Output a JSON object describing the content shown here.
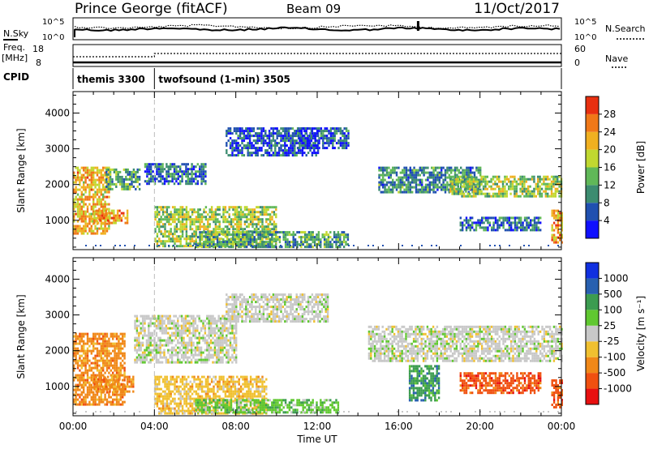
{
  "header": {
    "title": "Prince George (fitACF)",
    "beam": "Beam 09",
    "date": "11/Oct/2017"
  },
  "summary_panel": {
    "nsky_label": "N.Sky",
    "nsearch_label": "N.Search",
    "scale_top": "10^5",
    "scale_bottom": "10^0",
    "freq_label": "Freq.",
    "freq_unit": "[MHz]",
    "freq_ticks": [
      "18",
      "8"
    ],
    "nave_label": "Nave",
    "nave_ticks": [
      "60",
      "0"
    ],
    "cpid_label": "CPID",
    "cpid_segments": [
      {
        "label": "themis 3300",
        "start_hour": 0,
        "end_hour": 4
      },
      {
        "label": "twofsound (1-min) 3505",
        "start_hour": 4,
        "end_hour": 24
      }
    ]
  },
  "chart_data": [
    {
      "type": "heatmap",
      "name": "power",
      "xlabel": "",
      "ylabel": "Slant Range [km]",
      "xlim": [
        0,
        24
      ],
      "ylim": [
        180,
        4600
      ],
      "yticks": [
        1000,
        2000,
        3000,
        4000
      ],
      "colorbar": {
        "label": "Power [dB]",
        "ticks": [
          "4",
          "8",
          "12",
          "16",
          "20",
          "24",
          "28"
        ],
        "levels": [
          0,
          4,
          8,
          12,
          16,
          20,
          24,
          28,
          32
        ],
        "colors": [
          "#1010ff",
          "#2050b0",
          "#3c8c70",
          "#60b858",
          "#c0d830",
          "#f0b020",
          "#f07818",
          "#e83010"
        ]
      },
      "regions": [
        {
          "t0": 0.0,
          "t1": 1.8,
          "r0": 600,
          "r1": 2500,
          "level": 24
        },
        {
          "t0": 1.0,
          "t1": 2.7,
          "r0": 900,
          "r1": 1300,
          "level": 26
        },
        {
          "t0": 1.6,
          "t1": 3.3,
          "r0": 1850,
          "r1": 2450,
          "level": 14
        },
        {
          "t0": 4.0,
          "t1": 10.0,
          "r0": 250,
          "r1": 1400,
          "level": 18
        },
        {
          "t0": 6.0,
          "t1": 13.5,
          "r0": 250,
          "r1": 700,
          "level": 14
        },
        {
          "t0": 3.5,
          "t1": 6.5,
          "r0": 2000,
          "r1": 2600,
          "level": 10
        },
        {
          "t0": 7.5,
          "t1": 12.0,
          "r0": 2800,
          "r1": 3600,
          "level": 8
        },
        {
          "t0": 11.0,
          "t1": 13.5,
          "r0": 3000,
          "r1": 3600,
          "level": 8
        },
        {
          "t0": 15.0,
          "t1": 20.0,
          "r0": 1800,
          "r1": 2500,
          "level": 12
        },
        {
          "t0": 18.5,
          "t1": 24.0,
          "r0": 1700,
          "r1": 2250,
          "level": 18
        },
        {
          "t0": 19.0,
          "t1": 23.0,
          "r0": 750,
          "r1": 1100,
          "level": 10
        },
        {
          "t0": 23.5,
          "t1": 24.0,
          "r0": 400,
          "r1": 1300,
          "level": 26
        }
      ]
    },
    {
      "type": "heatmap",
      "name": "velocity",
      "xlabel": "Time UT",
      "ylabel": "Slant Range [km]",
      "xlim": [
        0,
        24
      ],
      "ylim": [
        180,
        4600
      ],
      "yticks": [
        1000,
        2000,
        3000,
        4000
      ],
      "xticks": [
        "00:00",
        "04:00",
        "08:00",
        "12:00",
        "16:00",
        "20:00",
        "00:00"
      ],
      "colorbar": {
        "label": "Velocity [m s⁻¹]",
        "ticks": [
          "-1000",
          "-500",
          "-100",
          "-25",
          "25",
          "100",
          "500",
          "1000"
        ],
        "colors": [
          "#e81010",
          "#f05010",
          "#f08818",
          "#f0c030",
          "#c8c8c8",
          "#60c830",
          "#3c9c50",
          "#2860b0",
          "#1030e0"
        ]
      },
      "regions": [
        {
          "t0": 0.0,
          "t1": 2.5,
          "r0": 500,
          "r1": 2500,
          "color_index": 2
        },
        {
          "t0": 1.0,
          "t1": 3.0,
          "r0": 850,
          "r1": 1300,
          "color_index": 2
        },
        {
          "t0": 4.0,
          "t1": 9.5,
          "r0": 250,
          "r1": 1300,
          "color_index": 3
        },
        {
          "t0": 6.0,
          "t1": 13.0,
          "r0": 250,
          "r1": 650,
          "color_index": 5
        },
        {
          "t0": 3.0,
          "t1": 8.0,
          "r0": 1700,
          "r1": 3000,
          "color_index": 4
        },
        {
          "t0": 7.5,
          "t1": 12.5,
          "r0": 2800,
          "r1": 3600,
          "color_index": 4
        },
        {
          "t0": 14.5,
          "t1": 24.0,
          "r0": 1700,
          "r1": 2700,
          "color_index": 4
        },
        {
          "t0": 19.0,
          "t1": 23.0,
          "r0": 800,
          "r1": 1400,
          "color_index": 1
        },
        {
          "t0": 16.5,
          "t1": 18.0,
          "r0": 600,
          "r1": 1600,
          "color_index": 6
        },
        {
          "t0": 23.5,
          "t1": 24.0,
          "r0": 400,
          "r1": 1200,
          "color_index": 1
        }
      ]
    }
  ]
}
